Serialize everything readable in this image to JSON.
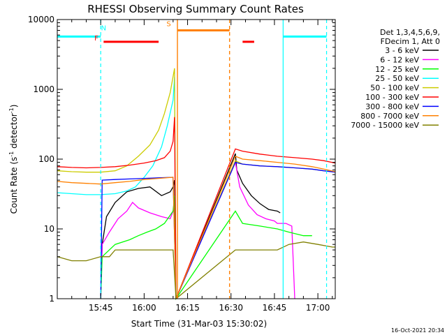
{
  "chart_data": {
    "type": "line",
    "title": "RHESSI Observing Summary Count Rates",
    "xlabel": "Start Time (31-Mar-03 15:30:02)",
    "ylabel_main": "Count Rate (s",
    "ylabel_sup1": "-1",
    "ylabel_mid": " detector",
    "ylabel_sup2": "-1",
    "ylabel_end": ")",
    "yscale": "log",
    "ylim": [
      1,
      10000
    ],
    "xlim": [
      0,
      96
    ],
    "x_units": "minutes since 15:30:02",
    "x_ticks": [
      {
        "value": 15,
        "label": "15:45"
      },
      {
        "value": 30,
        "label": "16:00"
      },
      {
        "value": 45,
        "label": "16:15"
      },
      {
        "value": 60,
        "label": "16:30"
      },
      {
        "value": 75,
        "label": "16:45"
      },
      {
        "value": 90,
        "label": "17:00"
      }
    ],
    "y_ticks": [
      {
        "value": 1,
        "label": "1"
      },
      {
        "value": 10,
        "label": "10"
      },
      {
        "value": 100,
        "label": "100"
      },
      {
        "value": 1000,
        "label": "1000"
      },
      {
        "value": 10000,
        "label": "10000"
      }
    ],
    "legend_header": [
      "Det 1,3,4,5,6,9,",
      "FDecim 1, Att 0"
    ],
    "legend_position": "right",
    "timestamp": "16-Oct-2021 20:34",
    "series": [
      {
        "name": "3 - 6 keV",
        "color": "#000000",
        "points": [
          [
            15,
            1
          ],
          [
            15.5,
            6
          ],
          [
            17,
            15
          ],
          [
            20,
            24
          ],
          [
            24,
            34
          ],
          [
            28,
            38
          ],
          [
            32,
            40
          ],
          [
            36,
            30
          ],
          [
            39,
            34
          ],
          [
            40,
            40
          ],
          [
            40.5,
            50
          ],
          [
            41,
            1
          ],
          [
            61.5,
            120
          ],
          [
            62,
            70
          ],
          [
            64,
            45
          ],
          [
            67,
            30
          ],
          [
            70,
            23
          ],
          [
            73,
            19
          ],
          [
            76,
            18
          ],
          [
            77,
            17
          ]
        ]
      },
      {
        "name": "6 - 12 keV",
        "color": "#ff00ff",
        "points": [
          [
            15,
            1
          ],
          [
            15.5,
            6
          ],
          [
            18,
            9
          ],
          [
            21,
            14
          ],
          [
            24,
            18
          ],
          [
            26,
            24
          ],
          [
            28,
            20
          ],
          [
            32,
            17
          ],
          [
            36,
            15
          ],
          [
            39,
            14
          ],
          [
            40,
            18
          ],
          [
            40.5,
            25
          ],
          [
            41,
            1
          ],
          [
            61.5,
            90
          ],
          [
            63,
            40
          ],
          [
            66,
            22
          ],
          [
            69,
            16
          ],
          [
            72,
            14
          ],
          [
            75,
            13
          ],
          [
            76,
            12
          ],
          [
            77,
            12
          ],
          [
            79,
            12
          ],
          [
            81,
            11
          ],
          [
            82,
            1
          ]
        ]
      },
      {
        "name": "12 - 25 keV",
        "color": "#00ff00",
        "points": [
          [
            15,
            1
          ],
          [
            15.5,
            4
          ],
          [
            20,
            6
          ],
          [
            25,
            7
          ],
          [
            28,
            8
          ],
          [
            31,
            9
          ],
          [
            34,
            10
          ],
          [
            37,
            12
          ],
          [
            40,
            18
          ],
          [
            40.5,
            30
          ],
          [
            41,
            1
          ],
          [
            61.5,
            18
          ],
          [
            64,
            12
          ],
          [
            70,
            11
          ],
          [
            76,
            10
          ],
          [
            80,
            9
          ],
          [
            85,
            8
          ],
          [
            88,
            8
          ]
        ]
      },
      {
        "name": "25 - 50 keV",
        "color": "#00ffff",
        "points": [
          [
            0,
            33
          ],
          [
            5,
            32
          ],
          [
            10,
            31
          ],
          [
            15,
            31
          ],
          [
            20,
            32
          ],
          [
            24,
            35
          ],
          [
            27,
            40
          ],
          [
            30,
            55
          ],
          [
            33,
            80
          ],
          [
            36,
            150
          ],
          [
            38,
            300
          ],
          [
            40,
            700
          ],
          [
            40.5,
            1500
          ],
          [
            41,
            1
          ]
        ]
      },
      {
        "name": "50 - 100 keV",
        "color": "#cccc00",
        "points": [
          [
            0,
            68
          ],
          [
            5,
            66
          ],
          [
            10,
            65
          ],
          [
            15,
            65
          ],
          [
            20,
            68
          ],
          [
            24,
            80
          ],
          [
            28,
            110
          ],
          [
            32,
            160
          ],
          [
            35,
            260
          ],
          [
            37,
            450
          ],
          [
            39,
            900
          ],
          [
            40.5,
            2000
          ],
          [
            41,
            1
          ],
          [
            61.5,
            95
          ],
          [
            64,
            85
          ],
          [
            70,
            80
          ],
          [
            76,
            78
          ],
          [
            82,
            75
          ],
          [
            88,
            72
          ],
          [
            92,
            68
          ],
          [
            96,
            66
          ]
        ]
      },
      {
        "name": "100 - 300 keV",
        "color": "#ff0000",
        "points": [
          [
            0,
            78
          ],
          [
            5,
            76
          ],
          [
            10,
            75
          ],
          [
            15,
            76
          ],
          [
            20,
            78
          ],
          [
            25,
            82
          ],
          [
            30,
            88
          ],
          [
            34,
            95
          ],
          [
            37,
            105
          ],
          [
            39,
            130
          ],
          [
            40,
            180
          ],
          [
            40.5,
            400
          ],
          [
            41,
            1
          ],
          [
            61.5,
            140
          ],
          [
            64,
            130
          ],
          [
            70,
            118
          ],
          [
            76,
            110
          ],
          [
            82,
            105
          ],
          [
            88,
            100
          ],
          [
            92,
            95
          ],
          [
            96,
            88
          ]
        ]
      },
      {
        "name": "300 - 800 keV",
        "color": "#0000ff",
        "points": [
          [
            15,
            1
          ],
          [
            15.5,
            50
          ],
          [
            20,
            51
          ],
          [
            25,
            52
          ],
          [
            30,
            53
          ],
          [
            35,
            54
          ],
          [
            40,
            55
          ],
          [
            41,
            1
          ],
          [
            61.5,
            90
          ],
          [
            64,
            85
          ],
          [
            70,
            80
          ],
          [
            76,
            78
          ],
          [
            82,
            75
          ],
          [
            88,
            72
          ],
          [
            92,
            68
          ],
          [
            96,
            65
          ]
        ]
      },
      {
        "name": "800 - 7000 keV",
        "color": "#ff8000",
        "points": [
          [
            0,
            48
          ],
          [
            5,
            46
          ],
          [
            10,
            45
          ],
          [
            15,
            44
          ],
          [
            20,
            46
          ],
          [
            25,
            48
          ],
          [
            30,
            51
          ],
          [
            35,
            53
          ],
          [
            40,
            55
          ],
          [
            41,
            1
          ],
          [
            61.5,
            110
          ],
          [
            64,
            100
          ],
          [
            70,
            95
          ],
          [
            76,
            90
          ],
          [
            82,
            85
          ],
          [
            88,
            78
          ],
          [
            92,
            72
          ],
          [
            96,
            66
          ]
        ]
      },
      {
        "name": "7000 - 15000 keV",
        "color": "#808000",
        "points": [
          [
            0,
            4
          ],
          [
            5,
            3.5
          ],
          [
            10,
            3.5
          ],
          [
            15,
            4
          ],
          [
            18,
            4
          ],
          [
            20,
            5
          ],
          [
            25,
            5
          ],
          [
            30,
            5
          ],
          [
            35,
            5
          ],
          [
            40,
            5
          ],
          [
            41,
            1
          ],
          [
            61.5,
            5
          ],
          [
            70,
            5
          ],
          [
            76,
            5
          ],
          [
            80,
            6
          ],
          [
            85,
            6.5
          ],
          [
            90,
            6
          ],
          [
            95,
            5.5
          ],
          [
            96,
            5.5
          ]
        ]
      }
    ],
    "annotations": {
      "night_bars": [
        {
          "x_start": 0,
          "x_end": 15,
          "y": 5700,
          "color": "#00ffff"
        },
        {
          "x_start": 78,
          "x_end": 93,
          "y": 5700,
          "color": "#00ffff"
        }
      ],
      "night_lines": [
        {
          "x": 15,
          "style": "dashed",
          "color": "#00ffff"
        },
        {
          "x": 78,
          "style": "solid",
          "color": "#00ffff"
        },
        {
          "x": 93,
          "style": "dashed",
          "color": "#00ffff"
        }
      ],
      "saa_lines": [
        {
          "x": 41.5,
          "style": "solid",
          "color": "#ff8000"
        },
        {
          "x": 59.5,
          "style": "dashed",
          "color": "#ff8000"
        }
      ],
      "saa_bar": {
        "x_start": 41.5,
        "x_end": 59.5,
        "y": 7000,
        "color": "#ff8000"
      },
      "flare_bars": [
        {
          "x_start": 16,
          "x_end": 35,
          "y": 4800,
          "color": "#ff0000"
        },
        {
          "x_start": 64,
          "x_end": 68,
          "y": 4800,
          "color": "#ff0000"
        }
      ],
      "labels": [
        {
          "text": "N",
          "x": 16,
          "y": 7000,
          "color": "#00ffff"
        },
        {
          "text": "F",
          "x": 13.5,
          "y": 5000,
          "color": "#ff0000"
        },
        {
          "text": "S",
          "x": 38.5,
          "y": 8000,
          "color": "#ff8000"
        }
      ]
    }
  }
}
